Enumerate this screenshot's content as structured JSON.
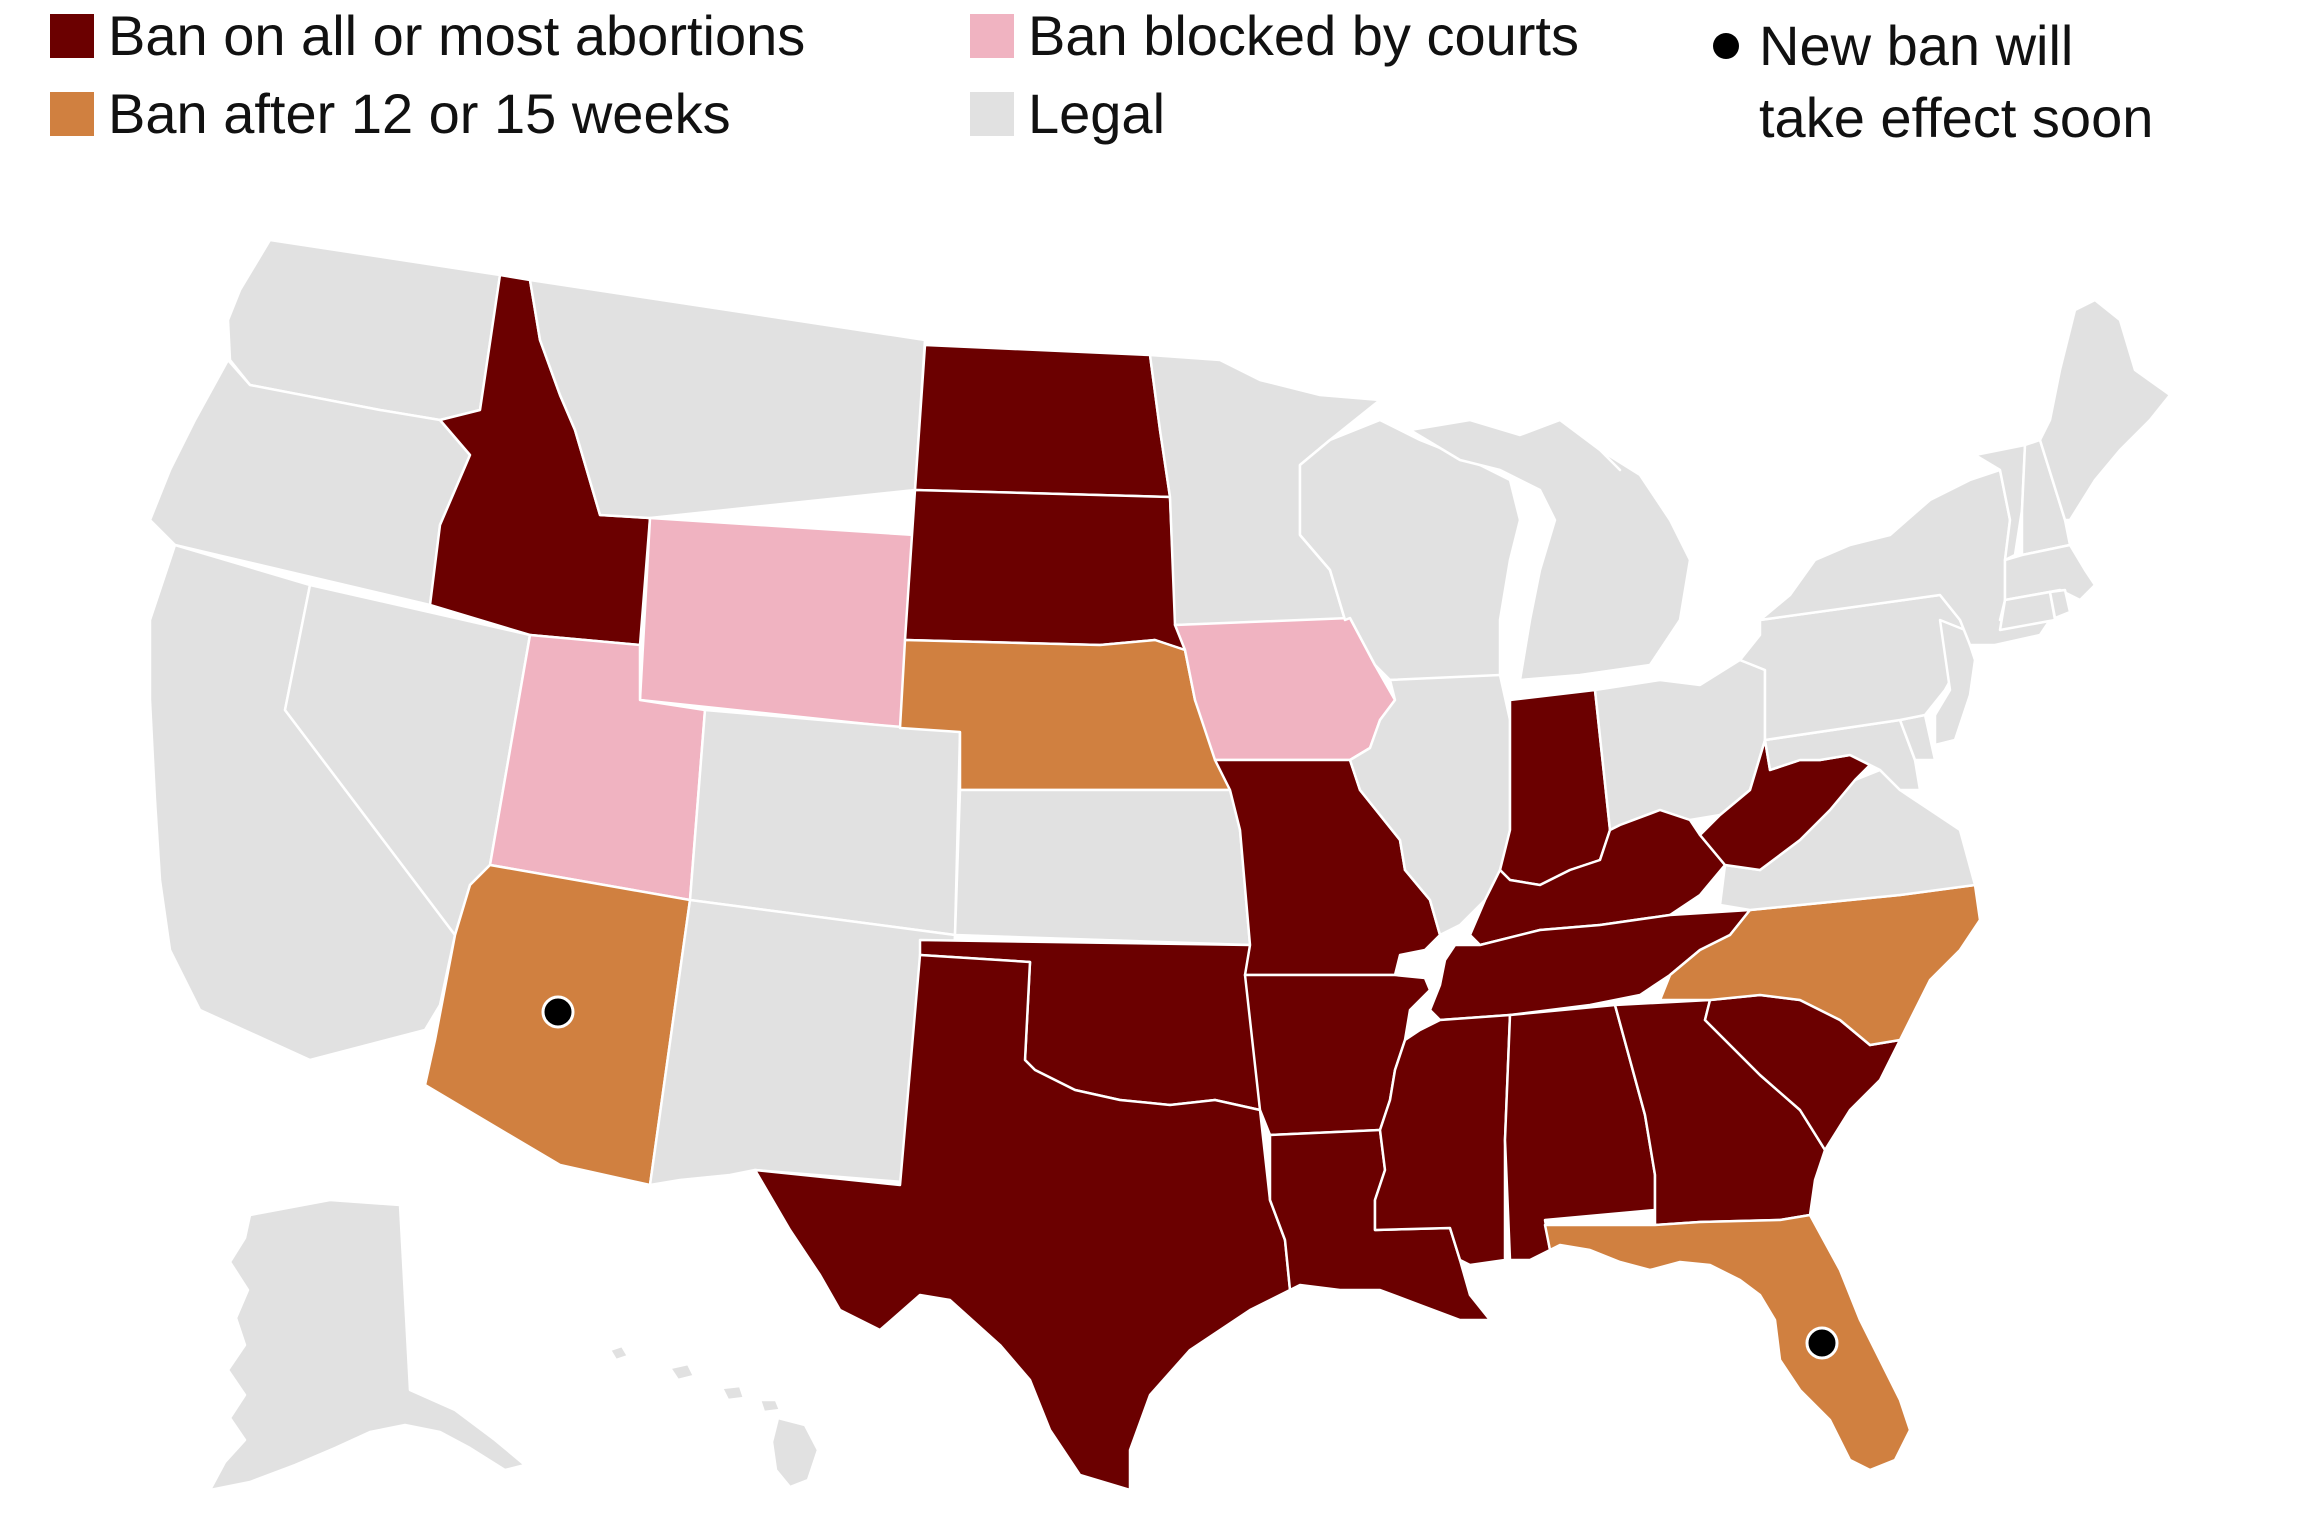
{
  "legend": {
    "items": [
      {
        "key": "ban",
        "label": "Ban on all or most abortions",
        "color": "#6b0000"
      },
      {
        "key": "ban_weeks",
        "label": "Ban after 12 or 15 weeks",
        "color": "#d08040"
      },
      {
        "key": "blocked",
        "label": "Ban blocked by courts",
        "color": "#f0b3c1"
      },
      {
        "key": "legal",
        "label": "Legal",
        "color": "#e1e1e1"
      }
    ],
    "new_ban": {
      "line1": "New ban will",
      "line2": "take effect soon",
      "marker_color": "#000000"
    }
  },
  "map": {
    "status_colors": {
      "ban": "#6b0000",
      "ban_weeks": "#d08040",
      "blocked": "#f0b3c1",
      "legal": "#e1e1e1"
    },
    "states": {
      "WA": "legal",
      "OR": "legal",
      "CA": "legal",
      "NV": "legal",
      "ID": "ban",
      "MT": "legal",
      "WY": "blocked",
      "UT": "blocked",
      "AZ": "ban_weeks",
      "CO": "legal",
      "NM": "legal",
      "ND": "ban",
      "SD": "ban",
      "NE": "ban_weeks",
      "KS": "legal",
      "OK": "ban",
      "TX": "ban",
      "MN": "legal",
      "IA": "blocked",
      "MO": "ban",
      "AR": "ban",
      "LA": "ban",
      "WI": "legal",
      "IL": "legal",
      "MI": "legal",
      "IN": "ban",
      "OH": "legal",
      "KY": "ban",
      "TN": "ban",
      "MS": "ban",
      "AL": "ban",
      "GA": "ban",
      "FL": "ban_weeks",
      "SC": "ban",
      "NC": "ban_weeks",
      "VA": "legal",
      "WV": "ban",
      "MD": "legal",
      "DE": "legal",
      "PA": "legal",
      "NJ": "legal",
      "NY": "legal",
      "CT": "legal",
      "RI": "legal",
      "MA": "legal",
      "VT": "legal",
      "NH": "legal",
      "ME": "legal",
      "AK": "legal",
      "HI": "legal"
    },
    "new_ban_states": [
      "AZ",
      "FL"
    ]
  }
}
